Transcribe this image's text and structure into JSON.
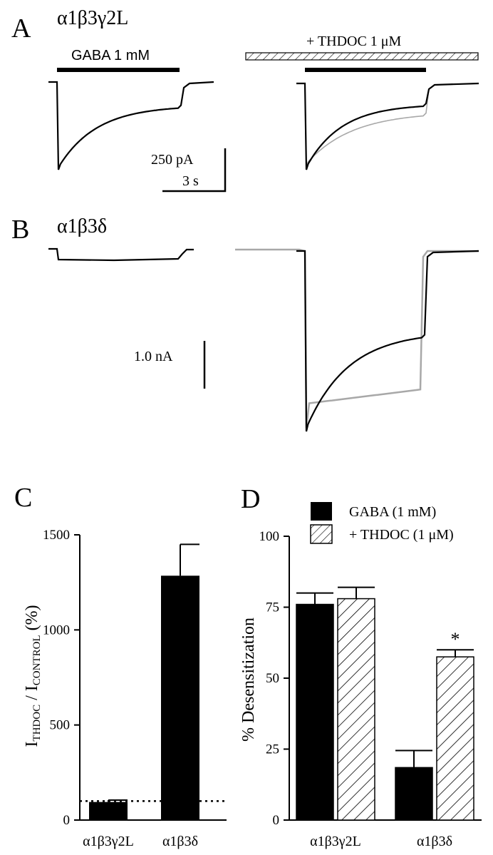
{
  "panel_a": {
    "letter": "A",
    "construct": "α1β3γ2L",
    "gaba_label": "GABA 1 mM",
    "thdoc_label": "+ THDOC 1 μM",
    "scale_current": "250 pA",
    "scale_time": "3 s"
  },
  "panel_b": {
    "letter": "B",
    "construct": "α1β3δ",
    "scale_current": "1.0 nA"
  },
  "panel_c": {
    "letter": "C"
  },
  "panel_d": {
    "letter": "D"
  },
  "colors": {
    "gaba": "#000000",
    "thdoc_trace": "#a8a8a8",
    "background": "#ffffff"
  },
  "chart_data": [
    {
      "type": "bar",
      "panel": "C",
      "categories": [
        "α1β3γ2L",
        "α1β3δ"
      ],
      "values": [
        95,
        1285
      ],
      "errors": [
        10,
        165
      ],
      "ylabel": "I_THDOC / I_CONTROL (%)",
      "ylabel_main": "I",
      "ylabel_sub1": "THDOC",
      "ylabel_mid": " / I",
      "ylabel_sub2": "CONTROL",
      "ylabel_tail": " (%)",
      "ylim": [
        0,
        1500
      ],
      "yticks": [
        0,
        500,
        1000,
        1500
      ],
      "reference_line": 100
    },
    {
      "type": "bar",
      "panel": "D",
      "categories": [
        "α1β3γ2L",
        "α1β3δ"
      ],
      "series": [
        {
          "name": "GABA (1 mM)",
          "values": [
            76,
            18.5
          ],
          "errors": [
            4,
            6
          ]
        },
        {
          "name": "+ THDOC (1 μM)",
          "values": [
            78,
            57.5
          ],
          "errors": [
            4,
            2.5
          ]
        }
      ],
      "ylabel": "% Desensitization",
      "ylim": [
        0,
        100
      ],
      "yticks": [
        0,
        25,
        50,
        75,
        100
      ],
      "annotation": "*",
      "legend_position": "top-right"
    }
  ]
}
